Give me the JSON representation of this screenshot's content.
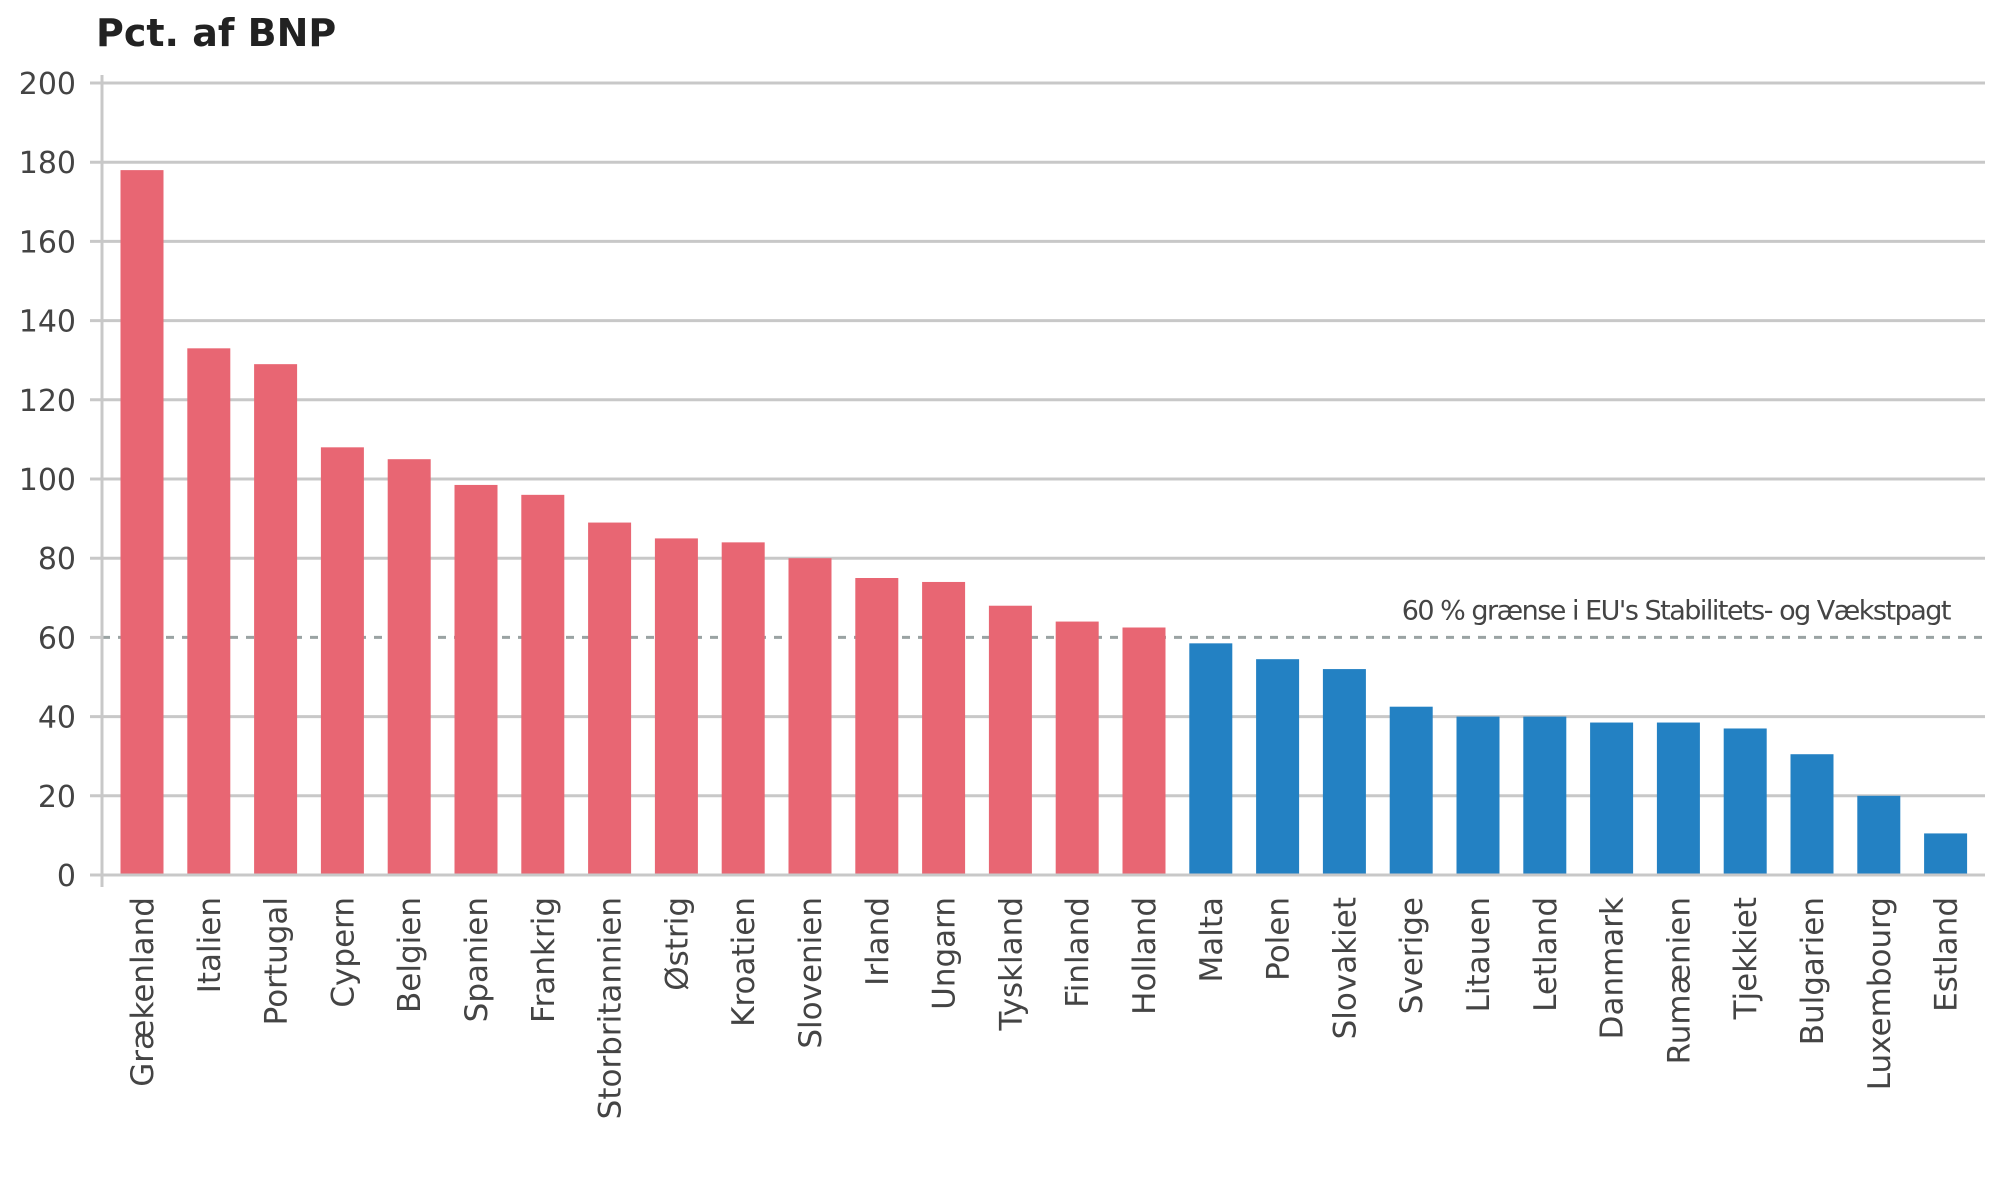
{
  "chart_data": {
    "type": "bar",
    "title": "Pct. af BNP",
    "xlabel": "",
    "ylabel": "",
    "ylim": [
      0,
      200
    ],
    "yticks": [
      0,
      20,
      40,
      60,
      80,
      100,
      120,
      140,
      160,
      180,
      200
    ],
    "grid": true,
    "categories": [
      "Grækenland",
      "Italien",
      "Portugal",
      "Cypern",
      "Belgien",
      "Spanien",
      "Frankrig",
      "Storbritannien",
      "Østrig",
      "Kroatien",
      "Slovenien",
      "Irland",
      "Ungarn",
      "Tyskland",
      "Finland",
      "Holland",
      "Malta",
      "Polen",
      "Slovakiet",
      "Sverige",
      "Litauen",
      "Letland",
      "Danmark",
      "Rumænien",
      "Tjekkiet",
      "Bulgarien",
      "Luxembourg",
      "Estland"
    ],
    "values": [
      178,
      133,
      129,
      108,
      105,
      98.5,
      96,
      89,
      85,
      84,
      80,
      75,
      74,
      68,
      64,
      62.5,
      58.5,
      54.5,
      52,
      42.5,
      40,
      40,
      38.5,
      38.5,
      37,
      30.5,
      20,
      10.5
    ],
    "colors": {
      "above_limit": "#e86673",
      "below_limit": "#2381c3",
      "grid": "#c8c8c8",
      "reference_line": "#9aa3a3"
    },
    "reference_line": {
      "value": 60,
      "label": "60 % grænse i EU's Stabilitets- og Vækstpagt",
      "style": "dashed"
    }
  }
}
